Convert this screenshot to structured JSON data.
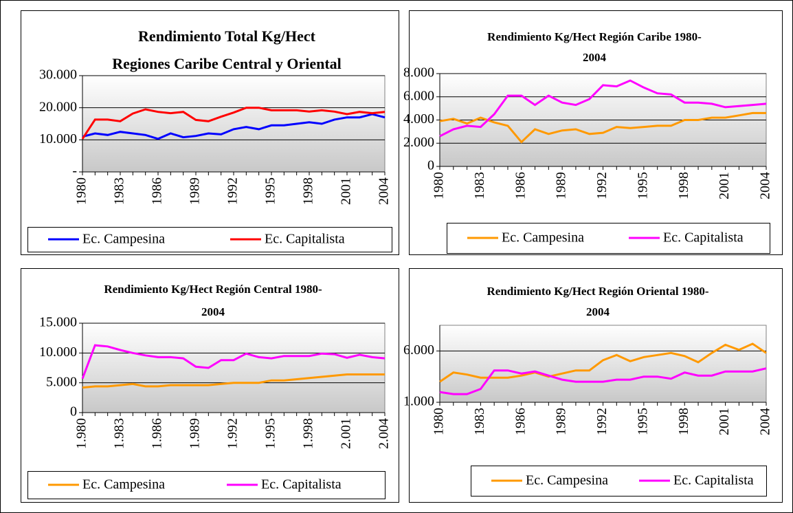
{
  "chart_data": [
    {
      "type": "line",
      "title": [
        "Rendimiento Total Kg/Hect",
        "Regiones Caribe Central y Oriental"
      ],
      "categories": [
        "1980",
        null,
        null,
        "1983",
        null,
        null,
        "1986",
        null,
        null,
        "1989",
        null,
        null,
        "1992",
        null,
        null,
        "1995",
        null,
        null,
        "1998",
        null,
        null,
        "2001",
        null,
        null,
        "2004"
      ],
      "series": [
        {
          "name": "Ec. Campesina",
          "color": "#0000ff",
          "values": [
            11000,
            12000,
            11500,
            12500,
            12000,
            11500,
            10300,
            12000,
            10800,
            11200,
            12000,
            11700,
            13300,
            14000,
            13300,
            14500,
            14500,
            15000,
            15500,
            15000,
            16300,
            17000,
            17000,
            18000,
            17000
          ]
        },
        {
          "name": "Ec. Capitalista",
          "color": "#ff0000",
          "values": [
            10300,
            16300,
            16300,
            15800,
            18200,
            19500,
            18700,
            18300,
            18700,
            16200,
            15800,
            17200,
            18500,
            20000,
            20000,
            19200,
            19200,
            19200,
            18800,
            19200,
            18800,
            18000,
            18700,
            18300,
            18700
          ]
        }
      ],
      "ylim": [
        0,
        30000
      ],
      "yticks": [
        {
          "value": 0,
          "label": "-"
        },
        {
          "value": 10000,
          "label": "10.000"
        },
        {
          "value": 20000,
          "label": "20.000"
        },
        {
          "value": 30000,
          "label": "30.000"
        }
      ],
      "grid": true,
      "legend": "bottom"
    },
    {
      "type": "line",
      "title": [
        "Rendimiento Kg/Hect Región Caribe 1980-",
        "2004"
      ],
      "categories": [
        "1980",
        null,
        null,
        "1983",
        null,
        null,
        "1986",
        null,
        null,
        "1989",
        null,
        null,
        "1992",
        null,
        null,
        "1995",
        null,
        null,
        "1998",
        null,
        null,
        "2001",
        null,
        null,
        "2004"
      ],
      "series": [
        {
          "name": "Ec. Campesina",
          "color": "#ff9900",
          "values": [
            3900,
            4100,
            3700,
            4200,
            3800,
            3500,
            2100,
            3200,
            2800,
            3100,
            3200,
            2800,
            2900,
            3400,
            3300,
            3400,
            3500,
            3500,
            4000,
            4000,
            4200,
            4200,
            4400,
            4600,
            4600
          ]
        },
        {
          "name": "Ec. Capitalista",
          "color": "#ff00ff",
          "values": [
            2600,
            3200,
            3500,
            3400,
            4500,
            6100,
            6100,
            5300,
            6100,
            5500,
            5300,
            5800,
            7000,
            6900,
            7400,
            6800,
            6300,
            6200,
            5500,
            5500,
            5400,
            5100,
            5200,
            5300,
            5400
          ]
        }
      ],
      "ylim": [
        0,
        8000
      ],
      "yticks": [
        0,
        {
          "value": 2000,
          "label": "2.000"
        },
        {
          "value": 4000,
          "label": "4.000"
        },
        {
          "value": 6000,
          "label": "6.000"
        },
        {
          "value": 8000,
          "label": "8.000"
        }
      ],
      "grid": true,
      "legend": "bottom"
    },
    {
      "type": "line",
      "title": [
        "Rendimiento Kg/Hect Región Central 1980-",
        "2004"
      ],
      "categories": [
        "1.980",
        null,
        null,
        "1.983",
        null,
        null,
        "1.986",
        null,
        null,
        "1.989",
        null,
        null,
        "1.992",
        null,
        null,
        "1.995",
        null,
        null,
        "1.998",
        null,
        null,
        "2.001",
        null,
        null,
        "2.004"
      ],
      "series": [
        {
          "name": "Ec. Campesina",
          "color": "#ff9900",
          "values": [
            4200,
            4400,
            4400,
            4600,
            4800,
            4400,
            4400,
            4600,
            4600,
            4600,
            4600,
            4800,
            5000,
            5000,
            5000,
            5400,
            5400,
            5600,
            5800,
            6000,
            6200,
            6400,
            6400,
            6400,
            6400
          ]
        },
        {
          "name": "Ec. Capitalista",
          "color": "#ff00ff",
          "values": [
            5700,
            11300,
            11100,
            10500,
            10000,
            9600,
            9300,
            9300,
            9100,
            7700,
            7500,
            8800,
            8800,
            9900,
            9300,
            9100,
            9500,
            9500,
            9500,
            9900,
            9800,
            9200,
            9700,
            9300,
            9100
          ]
        }
      ],
      "ylim": [
        0,
        15000
      ],
      "yticks": [
        0,
        {
          "value": 5000,
          "label": "5.000"
        },
        {
          "value": 10000,
          "label": "10.000"
        },
        {
          "value": 15000,
          "label": "15.000"
        }
      ],
      "grid": true,
      "legend": "bottom"
    },
    {
      "type": "line",
      "title": [
        "Rendimiento Kg/Hect Región Oriental 1980-",
        "2004"
      ],
      "categories": [
        "1980",
        null,
        null,
        "1983",
        null,
        null,
        "1986",
        null,
        null,
        "1989",
        null,
        null,
        "1992",
        null,
        null,
        "1995",
        null,
        null,
        "1998",
        null,
        null,
        "2001",
        null,
        null,
        "2004"
      ],
      "series": [
        {
          "name": "Ec. Campesina",
          "color": "#ff9900",
          "values": [
            3000,
            3900,
            3700,
            3400,
            3400,
            3400,
            3600,
            3900,
            3500,
            3800,
            4100,
            4100,
            5100,
            5600,
            5000,
            5400,
            5600,
            5800,
            5500,
            4900,
            5800,
            6600,
            6100,
            6700,
            5800
          ]
        },
        {
          "name": "Ec. Capitalista",
          "color": "#ff00ff",
          "values": [
            2000,
            1800,
            1800,
            2300,
            4100,
            4100,
            3800,
            4000,
            3600,
            3200,
            3000,
            3000,
            3000,
            3200,
            3200,
            3500,
            3500,
            3300,
            3900,
            3600,
            3600,
            4000,
            4000,
            4000,
            4300
          ]
        }
      ],
      "ylim": [
        1000,
        8500
      ],
      "yticks": [
        {
          "value": 1000,
          "label": "1.000"
        },
        {
          "value": 6000,
          "label": "6.000"
        }
      ],
      "grid": true,
      "legend": "bottom"
    }
  ]
}
